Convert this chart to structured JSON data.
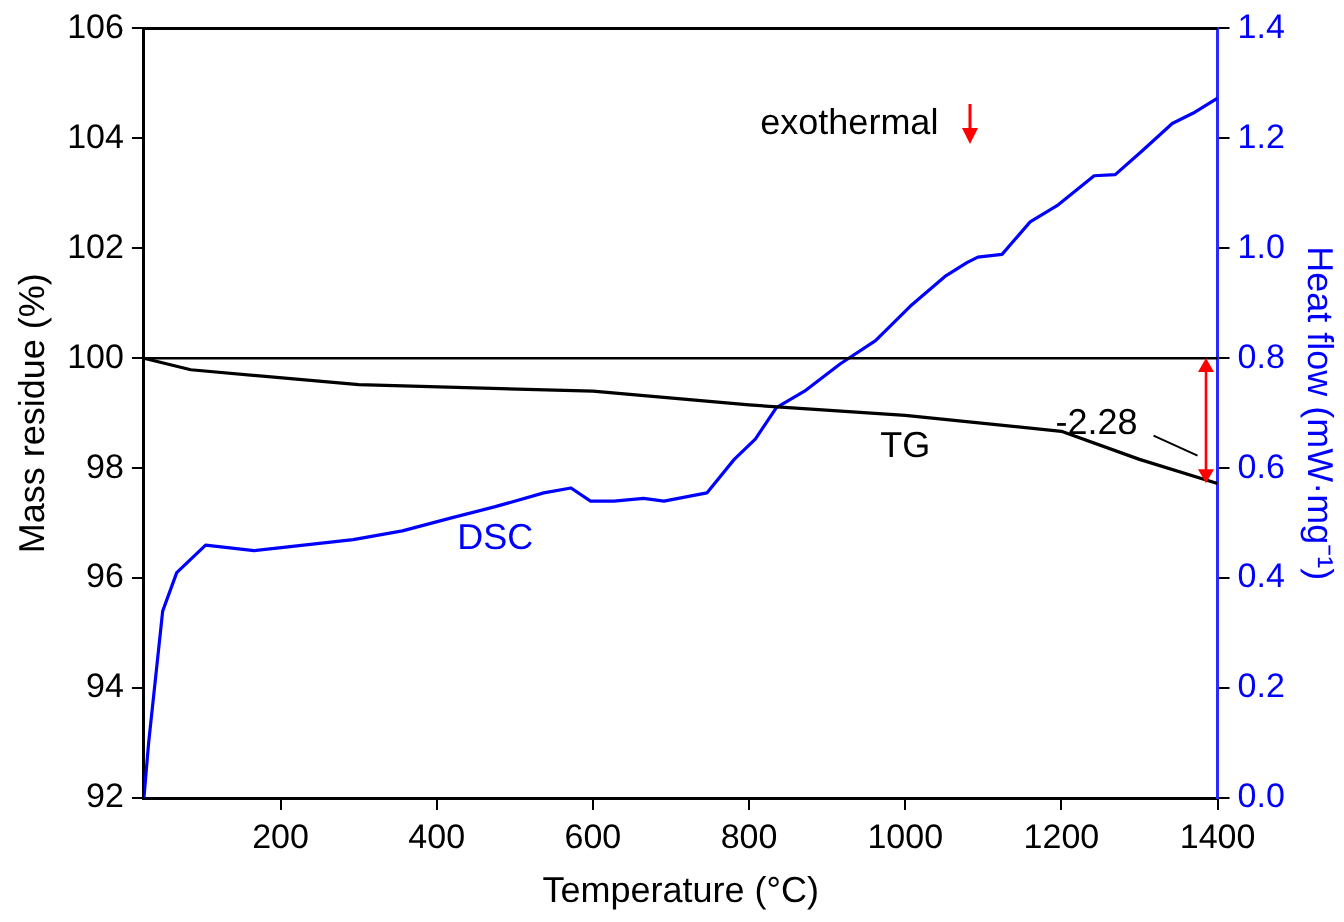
{
  "chart_data": {
    "type": "line",
    "xlabel": "Temperature (°C)",
    "ylabel": "Mass residue (%)",
    "y2label": "Heat flow (mW·mg⁻¹)",
    "xlim": [
      25,
      1400
    ],
    "xticks": [
      200,
      400,
      600,
      800,
      1000,
      1200,
      1400
    ],
    "ylim": [
      92,
      106
    ],
    "yticks": [
      92,
      94,
      96,
      98,
      100,
      102,
      104,
      106
    ],
    "y2lim": [
      0,
      1.4
    ],
    "y2ticks": [
      {
        "value": 0,
        "label": "0.0"
      },
      0.2,
      0.4,
      0.6,
      0.8,
      {
        "value": 1,
        "label": "1.0"
      },
      1.2,
      1.4
    ],
    "grid": false,
    "legend": false,
    "marker": "none",
    "line_style": "solid",
    "series": [
      {
        "name": "TG",
        "color": "#000000",
        "x": [
          25,
          85,
          300,
          600,
          800,
          1000,
          1200,
          1300,
          1400
        ],
        "values": [
          100,
          99.79,
          99.52,
          99.4,
          99.15,
          98.96,
          98.67,
          98.16,
          97.72
        ]
      },
      {
        "name": "DSC",
        "color": "#0000ff",
        "axis": "y2",
        "x": [
          25,
          31,
          49,
          67,
          104,
          166,
          293,
          356,
          420,
          475,
          537,
          572,
          597,
          627,
          665,
          691,
          746,
          781,
          808,
          835,
          871,
          917,
          962,
          1006,
          1052,
          1079,
          1093,
          1124,
          1160,
          1196,
          1242,
          1269,
          1304,
          1342,
          1369,
          1400
        ],
        "values": [
          0,
          0.1,
          0.34,
          0.41,
          0.46,
          0.45,
          0.47,
          0.486,
          0.51,
          0.53,
          0.555,
          0.564,
          0.54,
          0.54,
          0.545,
          0.54,
          0.555,
          0.616,
          0.653,
          0.71,
          0.74,
          0.79,
          0.832,
          0.894,
          0.95,
          0.974,
          0.984,
          0.989,
          1.048,
          1.079,
          1.132,
          1.134,
          1.178,
          1.227,
          1.246,
          1.273
        ]
      }
    ],
    "ref_lines": [
      {
        "axis": "y",
        "value": 100,
        "color": "#000000"
      }
    ],
    "annotations": [
      "exothermal",
      "-2.28"
    ]
  }
}
